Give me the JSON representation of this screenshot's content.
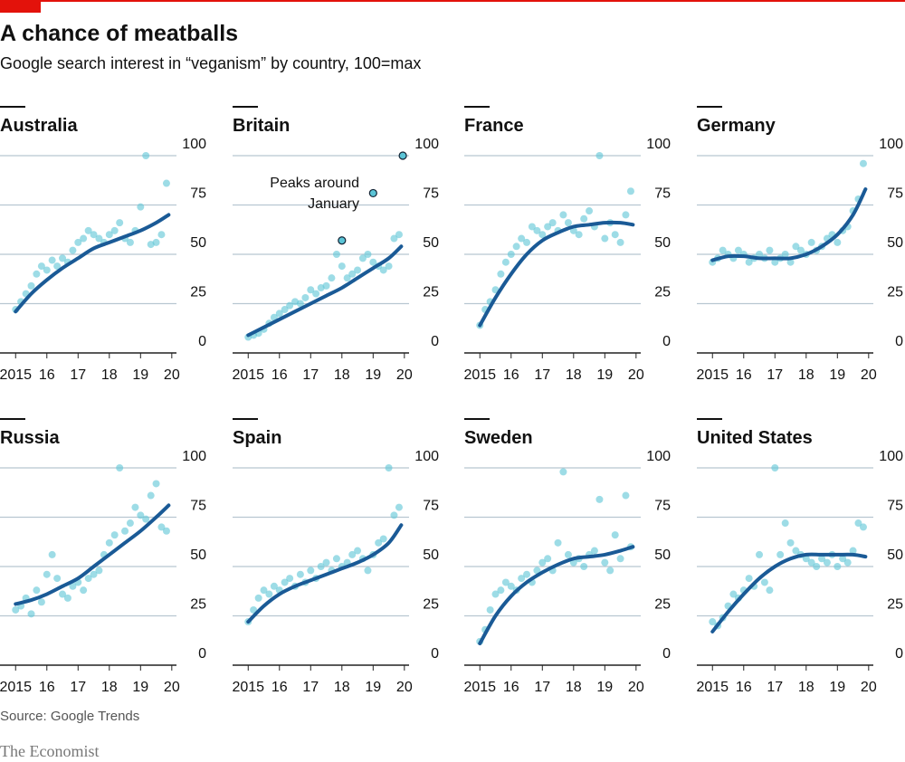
{
  "title": "A chance of meatballs",
  "subtitle": "Google search interest in “veganism” by country, 100=max",
  "source": "Source: Google Trends",
  "brand": "The Economist",
  "chart_data": [
    {
      "type": "scatter",
      "title": "Australia",
      "xlim": [
        2014.5,
        2020.15
      ],
      "ylim": [
        0,
        100
      ],
      "yticks": [
        0,
        25,
        50,
        75,
        100
      ],
      "xticks": [
        2015,
        {
          "value": 2016,
          "label": "16"
        },
        {
          "value": 2017,
          "label": "17"
        },
        {
          "value": 2018,
          "label": "18"
        },
        {
          "value": 2019,
          "label": "19"
        },
        {
          "value": 2020,
          "label": "20"
        }
      ],
      "color": "#5bc4d6",
      "trend_color": "#1a5a96",
      "x": [
        2015,
        2015.17,
        2015.33,
        2015.5,
        2015.67,
        2015.83,
        2016,
        2016.17,
        2016.33,
        2016.5,
        2016.67,
        2016.83,
        2017,
        2017.17,
        2017.33,
        2017.5,
        2017.67,
        2017.83,
        2018,
        2018.17,
        2018.33,
        2018.5,
        2018.67,
        2018.83,
        2019,
        2019.17,
        2019.33,
        2019.5,
        2019.67,
        2019.83
      ],
      "values": [
        22,
        26,
        30,
        34,
        40,
        44,
        42,
        47,
        44,
        48,
        46,
        52,
        56,
        58,
        62,
        60,
        58,
        56,
        60,
        62,
        66,
        58,
        56,
        62,
        74,
        100,
        55,
        56,
        60,
        86
      ],
      "trend_x": [
        2015,
        2015.5,
        2016,
        2016.5,
        2017,
        2017.5,
        2018,
        2018.5,
        2019,
        2019.5,
        2019.9
      ],
      "trend": [
        21,
        30,
        37,
        43,
        48,
        53,
        56,
        59,
        62,
        66,
        70
      ]
    },
    {
      "type": "scatter",
      "title": "Britain",
      "xlim": [
        2014.5,
        2020.15
      ],
      "ylim": [
        0,
        100
      ],
      "yticks": [
        0,
        25,
        50,
        75,
        100
      ],
      "xticks": [
        2015,
        {
          "value": 2016,
          "label": "16"
        },
        {
          "value": 2017,
          "label": "17"
        },
        {
          "value": 2018,
          "label": "18"
        },
        {
          "value": 2019,
          "label": "19"
        },
        {
          "value": 2020,
          "label": "20"
        }
      ],
      "color": "#5bc4d6",
      "trend_color": "#1a5a96",
      "x": [
        2015,
        2015.17,
        2015.33,
        2015.5,
        2015.67,
        2015.83,
        2016,
        2016.17,
        2016.33,
        2016.5,
        2016.67,
        2016.83,
        2017,
        2017.17,
        2017.33,
        2017.5,
        2017.67,
        2017.83,
        2018,
        2018.17,
        2018.33,
        2018.5,
        2018.67,
        2018.83,
        2019,
        2019.17,
        2019.33,
        2019.5,
        2019.67,
        2019.83
      ],
      "values": [
        8,
        9,
        10,
        12,
        15,
        18,
        20,
        22,
        24,
        26,
        25,
        28,
        32,
        30,
        33,
        34,
        38,
        50,
        44,
        38,
        40,
        42,
        48,
        50,
        46,
        44,
        42,
        44,
        58,
        60
      ],
      "trend_x": [
        2015,
        2015.5,
        2016,
        2016.5,
        2017,
        2017.5,
        2018,
        2018.5,
        2019,
        2019.5,
        2019.9
      ],
      "trend": [
        9,
        13,
        17,
        21,
        25,
        29,
        33,
        38,
        43,
        48,
        54
      ],
      "peaks_x": [
        2018,
        2019,
        2019.95
      ],
      "peaks": [
        57,
        81,
        100
      ],
      "annotation": [
        "Peaks around",
        "January"
      ]
    },
    {
      "type": "scatter",
      "title": "France",
      "xlim": [
        2014.5,
        2020.15
      ],
      "ylim": [
        0,
        100
      ],
      "yticks": [
        0,
        25,
        50,
        75,
        100
      ],
      "xticks": [
        2015,
        {
          "value": 2016,
          "label": "16"
        },
        {
          "value": 2017,
          "label": "17"
        },
        {
          "value": 2018,
          "label": "18"
        },
        {
          "value": 2019,
          "label": "19"
        },
        {
          "value": 2020,
          "label": "20"
        }
      ],
      "color": "#5bc4d6",
      "trend_color": "#1a5a96",
      "x": [
        2015,
        2015.17,
        2015.33,
        2015.5,
        2015.67,
        2015.83,
        2016,
        2016.17,
        2016.33,
        2016.5,
        2016.67,
        2016.83,
        2017,
        2017.17,
        2017.33,
        2017.5,
        2017.67,
        2017.83,
        2018,
        2018.17,
        2018.33,
        2018.5,
        2018.67,
        2018.83,
        2019,
        2019.17,
        2019.33,
        2019.5,
        2019.67,
        2019.83
      ],
      "values": [
        14,
        22,
        26,
        32,
        40,
        46,
        50,
        54,
        58,
        56,
        64,
        62,
        60,
        64,
        66,
        62,
        70,
        66,
        62,
        60,
        68,
        72,
        64,
        100,
        58,
        66,
        60,
        56,
        70,
        82
      ],
      "trend_x": [
        2015,
        2015.5,
        2016,
        2016.5,
        2017,
        2017.5,
        2018,
        2018.5,
        2019,
        2019.5,
        2019.9
      ],
      "trend": [
        14,
        28,
        40,
        50,
        57,
        61,
        64,
        65,
        66,
        66,
        65
      ]
    },
    {
      "type": "scatter",
      "title": "Germany",
      "xlim": [
        2014.5,
        2020.15
      ],
      "ylim": [
        0,
        100
      ],
      "yticks": [
        0,
        25,
        50,
        75,
        100
      ],
      "xticks": [
        2015,
        {
          "value": 2016,
          "label": "16"
        },
        {
          "value": 2017,
          "label": "17"
        },
        {
          "value": 2018,
          "label": "18"
        },
        {
          "value": 2019,
          "label": "19"
        },
        {
          "value": 2020,
          "label": "20"
        }
      ],
      "color": "#5bc4d6",
      "trend_color": "#1a5a96",
      "x": [
        2015,
        2015.17,
        2015.33,
        2015.5,
        2015.67,
        2015.83,
        2016,
        2016.17,
        2016.33,
        2016.5,
        2016.67,
        2016.83,
        2017,
        2017.17,
        2017.33,
        2017.5,
        2017.67,
        2017.83,
        2018,
        2018.17,
        2018.33,
        2018.5,
        2018.67,
        2018.83,
        2019,
        2019.17,
        2019.33,
        2019.5,
        2019.67,
        2019.83
      ],
      "values": [
        46,
        48,
        52,
        50,
        48,
        52,
        50,
        46,
        48,
        50,
        48,
        52,
        46,
        48,
        50,
        46,
        54,
        52,
        50,
        56,
        52,
        54,
        58,
        60,
        56,
        62,
        64,
        72,
        78,
        96
      ],
      "trend_x": [
        2015,
        2015.5,
        2016,
        2016.5,
        2017,
        2017.5,
        2018,
        2018.5,
        2019,
        2019.5,
        2019.9
      ],
      "trend": [
        47,
        49,
        49,
        48,
        48,
        48,
        50,
        54,
        60,
        70,
        83
      ]
    },
    {
      "type": "scatter",
      "title": "Russia",
      "xlim": [
        2014.5,
        2020.15
      ],
      "ylim": [
        0,
        100
      ],
      "yticks": [
        0,
        25,
        50,
        75,
        100
      ],
      "xticks": [
        2015,
        {
          "value": 2016,
          "label": "16"
        },
        {
          "value": 2017,
          "label": "17"
        },
        {
          "value": 2018,
          "label": "18"
        },
        {
          "value": 2019,
          "label": "19"
        },
        {
          "value": 2020,
          "label": "20"
        }
      ],
      "color": "#5bc4d6",
      "trend_color": "#1a5a96",
      "x": [
        2015,
        2015.17,
        2015.33,
        2015.5,
        2015.67,
        2015.83,
        2016,
        2016.17,
        2016.33,
        2016.5,
        2016.67,
        2016.83,
        2017,
        2017.17,
        2017.33,
        2017.5,
        2017.67,
        2017.83,
        2018,
        2018.17,
        2018.33,
        2018.5,
        2018.67,
        2018.83,
        2019,
        2019.17,
        2019.33,
        2019.5,
        2019.67,
        2019.83
      ],
      "values": [
        28,
        30,
        34,
        26,
        38,
        32,
        46,
        56,
        44,
        36,
        34,
        40,
        42,
        38,
        44,
        46,
        48,
        56,
        62,
        66,
        100,
        68,
        72,
        80,
        76,
        74,
        86,
        92,
        70,
        68
      ],
      "trend_x": [
        2015,
        2015.5,
        2016,
        2016.5,
        2017,
        2017.5,
        2018,
        2018.5,
        2019,
        2019.5,
        2019.9
      ],
      "trend": [
        31,
        33,
        36,
        40,
        44,
        50,
        56,
        62,
        68,
        75,
        81
      ]
    },
    {
      "type": "scatter",
      "title": "Spain",
      "xlim": [
        2014.5,
        2020.15
      ],
      "ylim": [
        0,
        100
      ],
      "yticks": [
        0,
        25,
        50,
        75,
        100
      ],
      "xticks": [
        2015,
        {
          "value": 2016,
          "label": "16"
        },
        {
          "value": 2017,
          "label": "17"
        },
        {
          "value": 2018,
          "label": "18"
        },
        {
          "value": 2019,
          "label": "19"
        },
        {
          "value": 2020,
          "label": "20"
        }
      ],
      "color": "#5bc4d6",
      "trend_color": "#1a5a96",
      "x": [
        2015,
        2015.17,
        2015.33,
        2015.5,
        2015.67,
        2015.83,
        2016,
        2016.17,
        2016.33,
        2016.5,
        2016.67,
        2016.83,
        2017,
        2017.17,
        2017.33,
        2017.5,
        2017.67,
        2017.83,
        2018,
        2018.17,
        2018.33,
        2018.5,
        2018.67,
        2018.83,
        2019,
        2019.17,
        2019.33,
        2019.5,
        2019.67,
        2019.83
      ],
      "values": [
        22,
        28,
        34,
        38,
        36,
        40,
        38,
        42,
        44,
        40,
        46,
        42,
        48,
        44,
        50,
        52,
        48,
        54,
        50,
        52,
        56,
        58,
        54,
        48,
        56,
        62,
        64,
        100,
        76,
        80
      ],
      "trend_x": [
        2015,
        2015.5,
        2016,
        2016.5,
        2017,
        2017.5,
        2018,
        2018.5,
        2019,
        2019.5,
        2019.9
      ],
      "trend": [
        22,
        30,
        36,
        40,
        43,
        46,
        49,
        52,
        56,
        62,
        71
      ]
    },
    {
      "type": "scatter",
      "title": "Sweden",
      "xlim": [
        2014.5,
        2020.15
      ],
      "ylim": [
        0,
        100
      ],
      "yticks": [
        0,
        25,
        50,
        75,
        100
      ],
      "xticks": [
        2015,
        {
          "value": 2016,
          "label": "16"
        },
        {
          "value": 2017,
          "label": "17"
        },
        {
          "value": 2018,
          "label": "18"
        },
        {
          "value": 2019,
          "label": "19"
        },
        {
          "value": 2020,
          "label": "20"
        }
      ],
      "color": "#5bc4d6",
      "trend_color": "#1a5a96",
      "x": [
        2015,
        2015.17,
        2015.33,
        2015.5,
        2015.67,
        2015.83,
        2016,
        2016.17,
        2016.33,
        2016.5,
        2016.67,
        2016.83,
        2017,
        2017.17,
        2017.33,
        2017.5,
        2017.67,
        2017.83,
        2018,
        2018.17,
        2018.33,
        2018.5,
        2018.67,
        2018.83,
        2019,
        2019.17,
        2019.33,
        2019.5,
        2019.67,
        2019.83
      ],
      "values": [
        12,
        18,
        28,
        36,
        38,
        42,
        40,
        38,
        44,
        46,
        42,
        48,
        52,
        54,
        48,
        62,
        98,
        56,
        52,
        54,
        50,
        56,
        58,
        84,
        52,
        48,
        66,
        54,
        86,
        60
      ],
      "trend_x": [
        2015,
        2015.5,
        2016,
        2016.5,
        2017,
        2017.5,
        2018,
        2018.5,
        2019,
        2019.5,
        2019.9
      ],
      "trend": [
        11,
        25,
        35,
        42,
        47,
        51,
        54,
        55,
        56,
        58,
        60
      ]
    },
    {
      "type": "scatter",
      "title": "United States",
      "xlim": [
        2014.5,
        2020.15
      ],
      "ylim": [
        0,
        100
      ],
      "yticks": [
        0,
        25,
        50,
        75,
        100
      ],
      "xticks": [
        2015,
        {
          "value": 2016,
          "label": "16"
        },
        {
          "value": 2017,
          "label": "17"
        },
        {
          "value": 2018,
          "label": "18"
        },
        {
          "value": 2019,
          "label": "19"
        },
        {
          "value": 2020,
          "label": "20"
        }
      ],
      "color": "#5bc4d6",
      "trend_color": "#1a5a96",
      "x": [
        2015,
        2015.17,
        2015.33,
        2015.5,
        2015.67,
        2015.83,
        2016,
        2016.17,
        2016.33,
        2016.5,
        2016.67,
        2016.83,
        2017,
        2017.17,
        2017.33,
        2017.5,
        2017.67,
        2017.83,
        2018,
        2018.17,
        2018.33,
        2018.5,
        2018.67,
        2018.83,
        2019,
        2019.17,
        2019.33,
        2019.5,
        2019.67,
        2019.83
      ],
      "values": [
        22,
        20,
        24,
        30,
        36,
        34,
        38,
        44,
        40,
        56,
        42,
        38,
        100,
        56,
        72,
        62,
        58,
        56,
        54,
        52,
        50,
        54,
        52,
        56,
        50,
        54,
        52,
        58,
        72,
        70
      ],
      "trend_x": [
        2015,
        2015.5,
        2016,
        2016.5,
        2017,
        2017.5,
        2018,
        2018.5,
        2019,
        2019.5,
        2019.9
      ],
      "trend": [
        17,
        27,
        36,
        44,
        50,
        54,
        56,
        56,
        56,
        56,
        55
      ]
    }
  ]
}
